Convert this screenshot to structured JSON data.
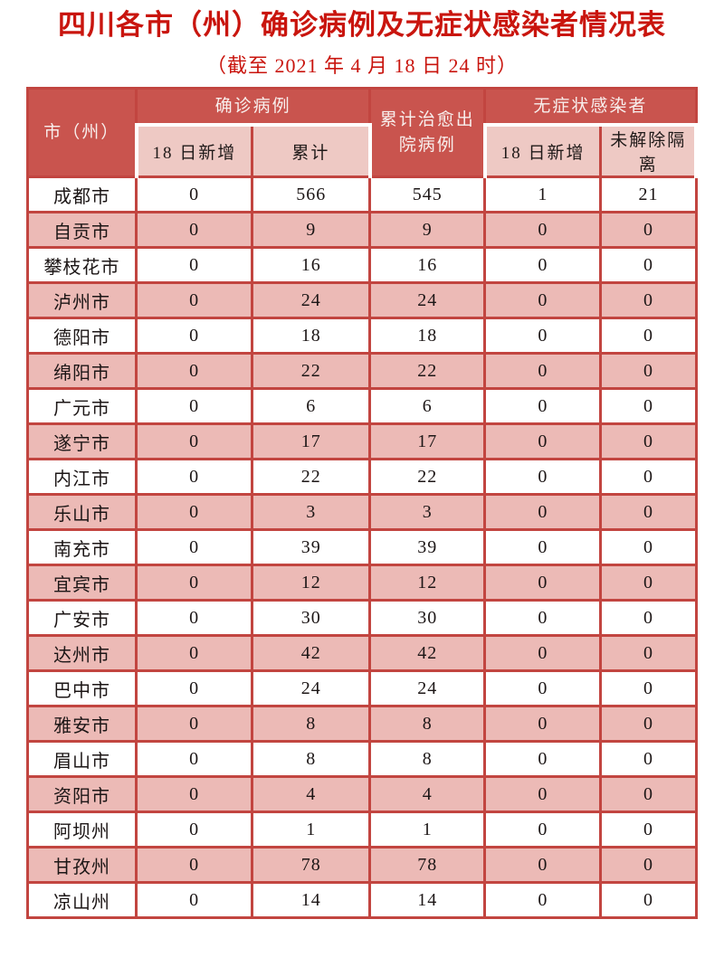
{
  "page": {
    "title": "四川各市（州）确诊病例及无症状感染者情况表",
    "subtitle": "（截至 2021 年 4 月 18 日 24 时）"
  },
  "colors": {
    "title_red": "#c9150e",
    "header_band_bg": "#c9544e",
    "header_text": "#f8efed",
    "subheader_bg": "#eec9c4",
    "row_alt_bg": "#ecbab6",
    "border_red": "#c24540",
    "subheader_outline": "#ffffff"
  },
  "table": {
    "header": {
      "city": "市（州）",
      "confirmed_group": "确诊病例",
      "cured": "累计治愈出院病例",
      "asymptomatic_group": "无症状感染者",
      "sub": {
        "confirmed_new": "18 日新增",
        "confirmed_total": "累计",
        "asymptomatic_new": "18 日新增",
        "asymptomatic_quarantine": "未解除隔离"
      }
    },
    "rows": [
      {
        "city": "成都市",
        "confirmed_new": "0",
        "confirmed_total": "566",
        "cured": "545",
        "asym_new": "1",
        "asym_quar": "21"
      },
      {
        "city": "自贡市",
        "confirmed_new": "0",
        "confirmed_total": "9",
        "cured": "9",
        "asym_new": "0",
        "asym_quar": "0"
      },
      {
        "city": "攀枝花市",
        "confirmed_new": "0",
        "confirmed_total": "16",
        "cured": "16",
        "asym_new": "0",
        "asym_quar": "0"
      },
      {
        "city": "泸州市",
        "confirmed_new": "0",
        "confirmed_total": "24",
        "cured": "24",
        "asym_new": "0",
        "asym_quar": "0"
      },
      {
        "city": "德阳市",
        "confirmed_new": "0",
        "confirmed_total": "18",
        "cured": "18",
        "asym_new": "0",
        "asym_quar": "0"
      },
      {
        "city": "绵阳市",
        "confirmed_new": "0",
        "confirmed_total": "22",
        "cured": "22",
        "asym_new": "0",
        "asym_quar": "0"
      },
      {
        "city": "广元市",
        "confirmed_new": "0",
        "confirmed_total": "6",
        "cured": "6",
        "asym_new": "0",
        "asym_quar": "0"
      },
      {
        "city": "遂宁市",
        "confirmed_new": "0",
        "confirmed_total": "17",
        "cured": "17",
        "asym_new": "0",
        "asym_quar": "0"
      },
      {
        "city": "内江市",
        "confirmed_new": "0",
        "confirmed_total": "22",
        "cured": "22",
        "asym_new": "0",
        "asym_quar": "0"
      },
      {
        "city": "乐山市",
        "confirmed_new": "0",
        "confirmed_total": "3",
        "cured": "3",
        "asym_new": "0",
        "asym_quar": "0"
      },
      {
        "city": "南充市",
        "confirmed_new": "0",
        "confirmed_total": "39",
        "cured": "39",
        "asym_new": "0",
        "asym_quar": "0"
      },
      {
        "city": "宜宾市",
        "confirmed_new": "0",
        "confirmed_total": "12",
        "cured": "12",
        "asym_new": "0",
        "asym_quar": "0"
      },
      {
        "city": "广安市",
        "confirmed_new": "0",
        "confirmed_total": "30",
        "cured": "30",
        "asym_new": "0",
        "asym_quar": "0"
      },
      {
        "city": "达州市",
        "confirmed_new": "0",
        "confirmed_total": "42",
        "cured": "42",
        "asym_new": "0",
        "asym_quar": "0"
      },
      {
        "city": "巴中市",
        "confirmed_new": "0",
        "confirmed_total": "24",
        "cured": "24",
        "asym_new": "0",
        "asym_quar": "0"
      },
      {
        "city": "雅安市",
        "confirmed_new": "0",
        "confirmed_total": "8",
        "cured": "8",
        "asym_new": "0",
        "asym_quar": "0"
      },
      {
        "city": "眉山市",
        "confirmed_new": "0",
        "confirmed_total": "8",
        "cured": "8",
        "asym_new": "0",
        "asym_quar": "0"
      },
      {
        "city": "资阳市",
        "confirmed_new": "0",
        "confirmed_total": "4",
        "cured": "4",
        "asym_new": "0",
        "asym_quar": "0"
      },
      {
        "city": "阿坝州",
        "confirmed_new": "0",
        "confirmed_total": "1",
        "cured": "1",
        "asym_new": "0",
        "asym_quar": "0"
      },
      {
        "city": "甘孜州",
        "confirmed_new": "0",
        "confirmed_total": "78",
        "cured": "78",
        "asym_new": "0",
        "asym_quar": "0"
      },
      {
        "city": "凉山州",
        "confirmed_new": "0",
        "confirmed_total": "14",
        "cured": "14",
        "asym_new": "0",
        "asym_quar": "0"
      }
    ]
  }
}
